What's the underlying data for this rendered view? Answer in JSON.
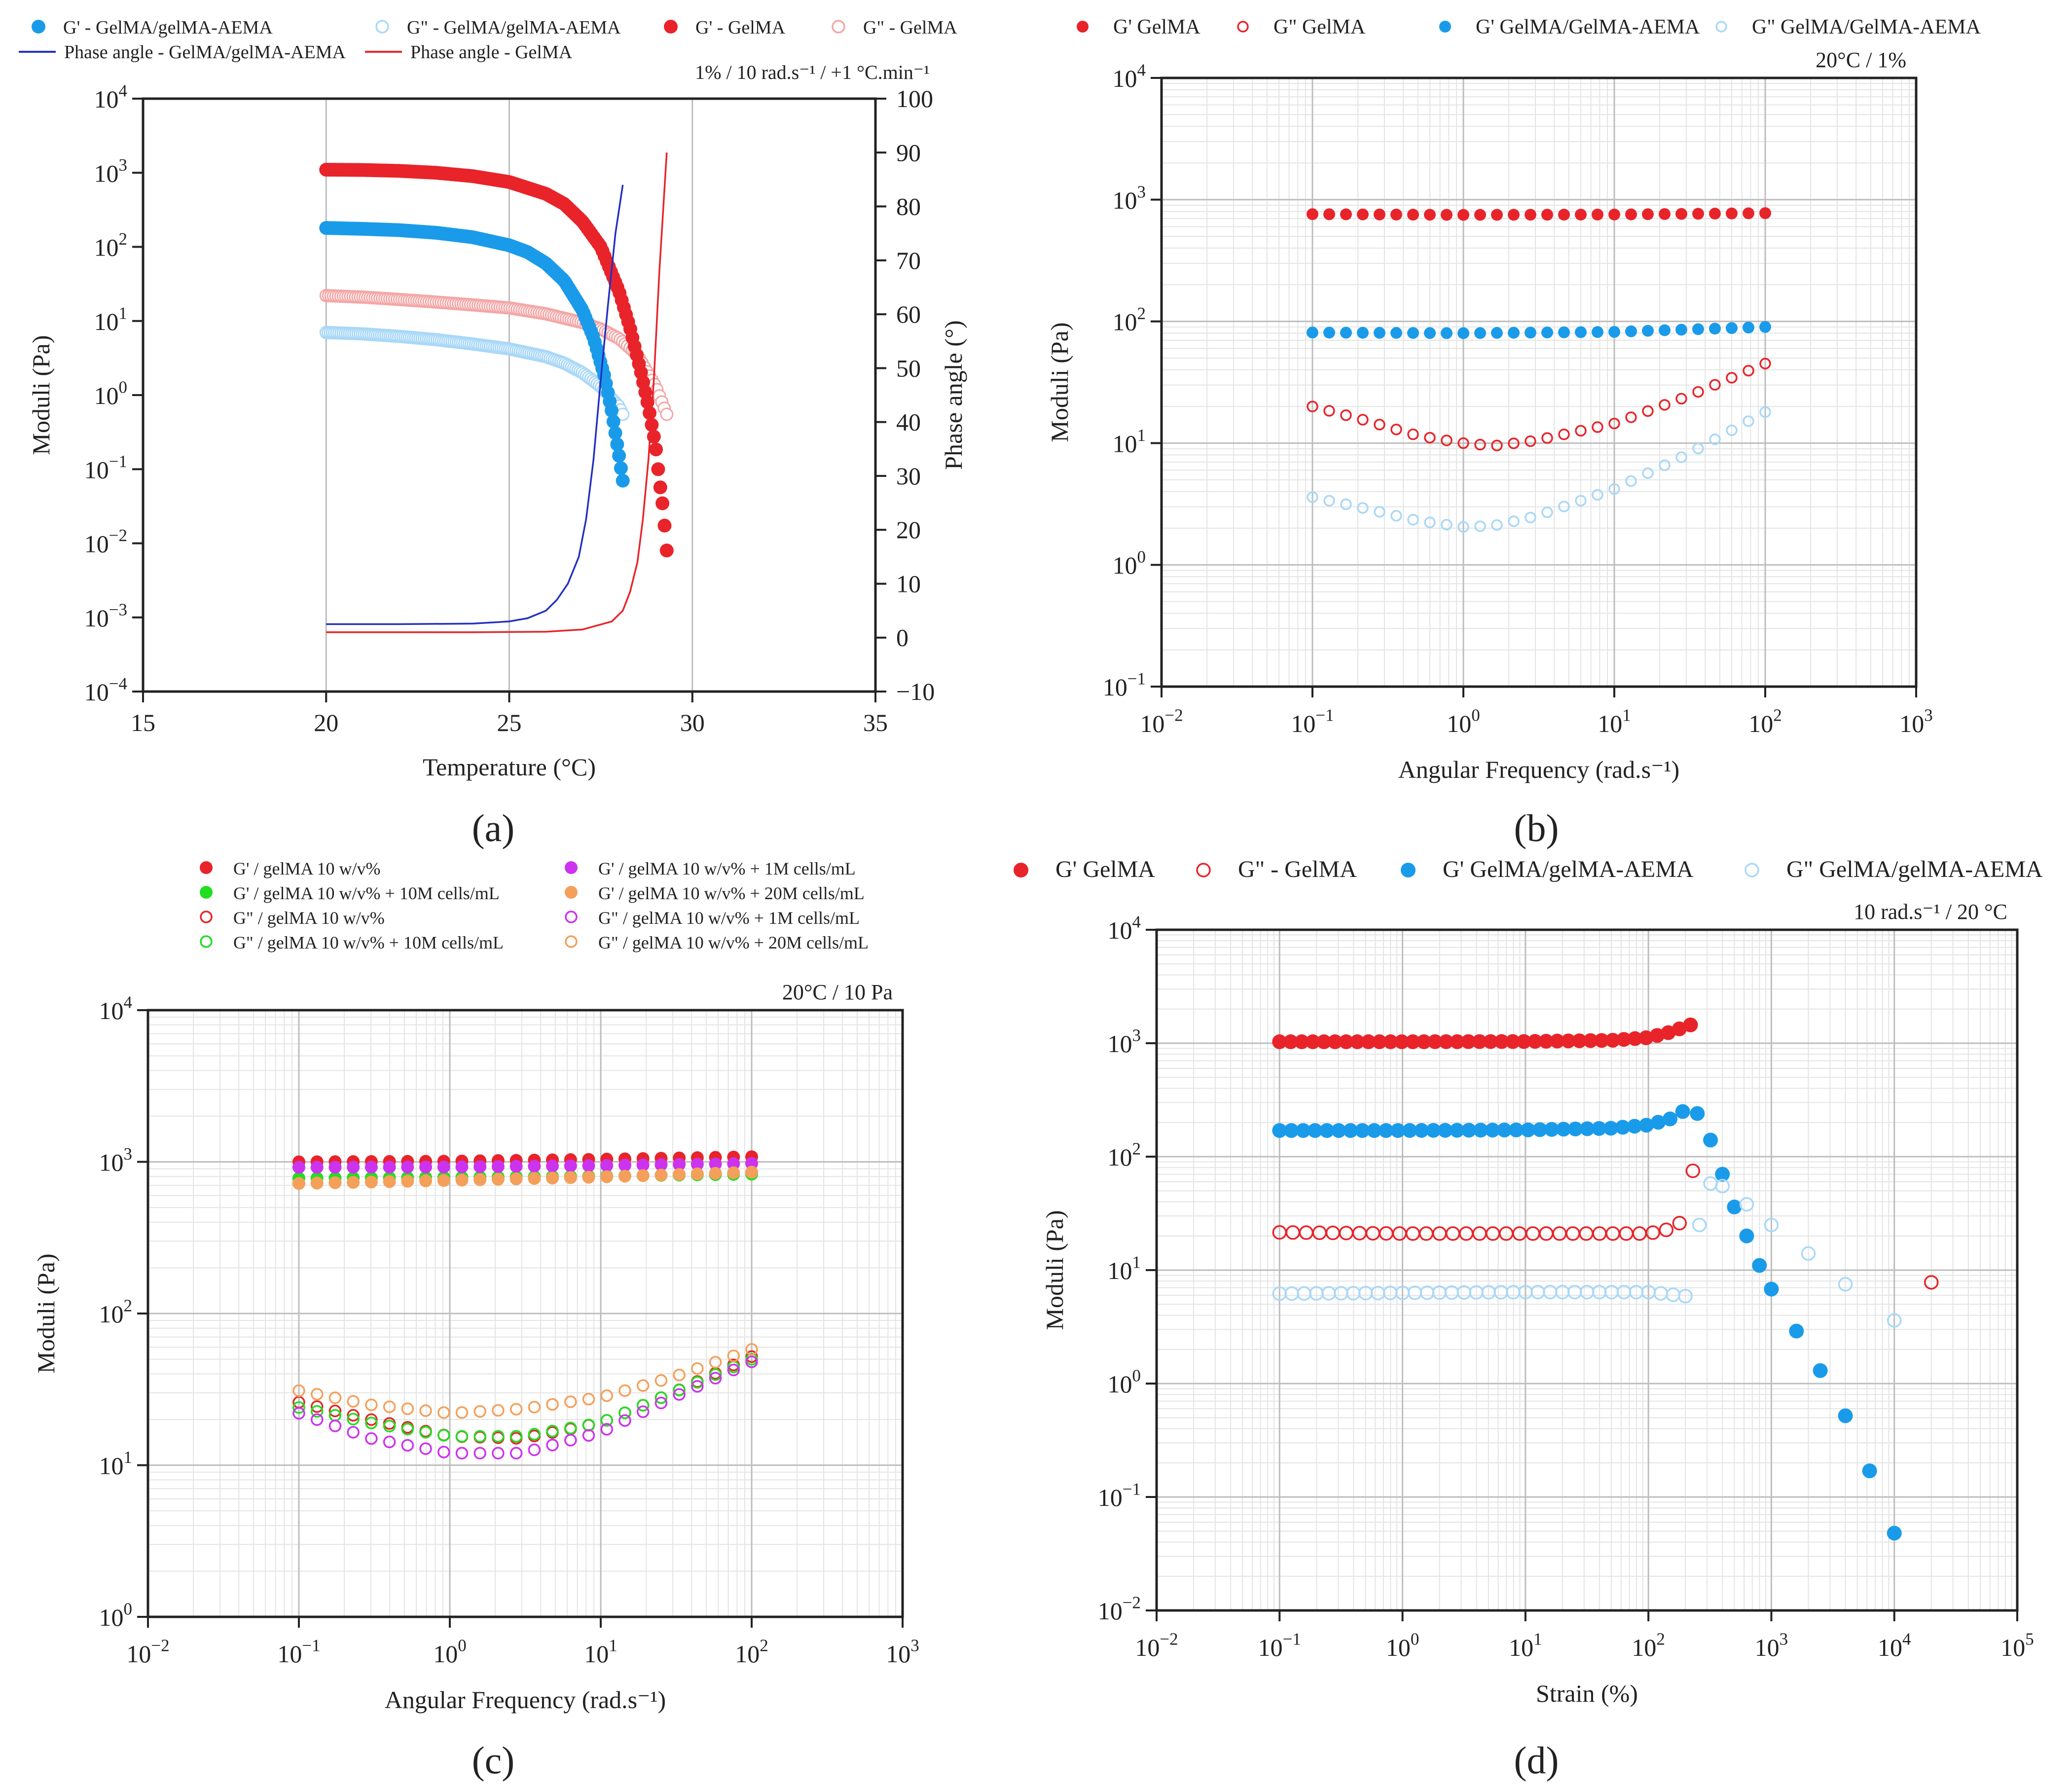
{
  "colors": {
    "red": "#e8242a",
    "blue": "#1a9bea",
    "light_red": "#f4a6a6",
    "light_blue": "#a9d8f7",
    "navy_line": "#2430c0",
    "red_line": "#e8242a",
    "green": "#22dd22",
    "magenta": "#cc33ee",
    "orange": "#f4a05a"
  },
  "panel_labels": {
    "a": "(a)",
    "b": "(b)",
    "c": "(c)",
    "d": "(d)"
  },
  "chart_data": [
    {
      "id": "a",
      "type": "scatter",
      "title": "",
      "annotation": "1% / 10 rad.s⁻¹ / +1 °C.min⁻¹",
      "xlabel": "Temperature (°C)",
      "ylabel": "Moduli (Pa)",
      "y2label": "Phase angle (°)",
      "xlim": [
        15,
        35
      ],
      "ylim_log10": [
        -4,
        4
      ],
      "y2lim": [
        -10,
        100
      ],
      "xticks": [
        "15",
        "20",
        "25",
        "30",
        "35"
      ],
      "yticks_exp": [
        "−4",
        "−3",
        "−2",
        "−1",
        "0",
        "1",
        "2",
        "3",
        "4"
      ],
      "y2ticks": [
        "−10",
        "0",
        "10",
        "20",
        "30",
        "40",
        "50",
        "60",
        "70",
        "80",
        "90",
        "100"
      ],
      "series": [
        {
          "name": "G' - GelMA/gelMA-AEMA",
          "style": "filled",
          "color": "blue",
          "x": [
            20,
            21,
            22,
            23,
            24,
            25,
            25.5,
            26,
            26.5,
            27,
            27.3,
            27.6,
            27.8,
            28,
            28.1
          ],
          "y": [
            180,
            175,
            168,
            155,
            135,
            105,
            85,
            60,
            35,
            14,
            6,
            1.8,
            0.6,
            0.15,
            0.07
          ]
        },
        {
          "name": "G\" - GelMA/gelMA-AEMA",
          "style": "open",
          "color": "light_blue",
          "x": [
            20,
            21,
            22,
            23,
            24,
            25,
            26,
            26.5,
            27,
            27.5,
            28,
            28.1
          ],
          "y": [
            7,
            6.7,
            6.2,
            5.6,
            4.9,
            4.2,
            3.3,
            2.7,
            2,
            1.3,
            0.7,
            0.55
          ]
        },
        {
          "name": "G' - GelMA",
          "style": "filled",
          "color": "red",
          "x": [
            20,
            21,
            22,
            23,
            24,
            25,
            26,
            26.5,
            27,
            27.5,
            28,
            28.3,
            28.6,
            28.8,
            29,
            29.1,
            29.2,
            29.3
          ],
          "y": [
            1100,
            1090,
            1060,
            1000,
            900,
            750,
            520,
            380,
            220,
            100,
            25,
            8,
            2,
            0.7,
            0.2,
            0.07,
            0.03,
            0.008
          ]
        },
        {
          "name": "G\" - GelMA",
          "style": "open",
          "color": "light_red",
          "x": [
            20,
            21,
            22,
            23,
            24,
            25,
            26,
            27,
            27.5,
            28,
            28.5,
            29,
            29.3
          ],
          "y": [
            22,
            21,
            19.5,
            18,
            16.5,
            15,
            12.5,
            9.5,
            7.8,
            5.8,
            3.5,
            1.3,
            0.55
          ]
        },
        {
          "name": "Phase angle - GelMA/gelMA-AEMA",
          "style": "line",
          "color": "navy_line",
          "axis": "y2",
          "x": [
            20,
            22,
            24,
            25,
            25.5,
            26,
            26.3,
            26.6,
            26.9,
            27.1,
            27.3,
            27.5,
            27.7,
            27.9,
            28.1
          ],
          "y": [
            2.5,
            2.5,
            2.6,
            3,
            3.6,
            5,
            7,
            10,
            15,
            22,
            33,
            48,
            62,
            75,
            84
          ]
        },
        {
          "name": "Phase angle - GelMA",
          "style": "line",
          "color": "red_line",
          "axis": "y2",
          "x": [
            20,
            24,
            26,
            27,
            27.8,
            28.1,
            28.3,
            28.5,
            28.65,
            28.8,
            28.95,
            29.1,
            29.3
          ],
          "y": [
            1,
            1,
            1.1,
            1.5,
            3,
            5,
            8.5,
            14,
            22,
            33,
            48,
            68,
            90
          ]
        }
      ]
    },
    {
      "id": "b",
      "type": "scatter",
      "title": "",
      "annotation": "20°C / 1%",
      "xlabel": "Angular Frequency (rad.s⁻¹)",
      "ylabel": "Moduli (Pa)",
      "xlim_log10": [
        -2,
        3
      ],
      "ylim_log10": [
        -1,
        4
      ],
      "xticks_exp": [
        "−2",
        "−1",
        "0",
        "1",
        "2",
        "3"
      ],
      "yticks_exp": [
        "−1",
        "0",
        "1",
        "2",
        "3",
        "4"
      ],
      "series": [
        {
          "name": "G' GelMA",
          "style": "filled",
          "color": "red",
          "x": [
            0.1,
            1,
            10,
            100
          ],
          "y": [
            760,
            750,
            755,
            775
          ]
        },
        {
          "name": "G\" GelMA",
          "style": "open",
          "color": "red",
          "x": [
            0.1,
            0.2,
            0.5,
            1,
            1.6,
            3,
            10,
            30,
            100
          ],
          "y": [
            20,
            16,
            11.5,
            10,
            9.5,
            10.5,
            14.5,
            24,
            45
          ]
        },
        {
          "name": "G' GelMA/GelMA-AEMA",
          "style": "filled",
          "color": "blue",
          "x": [
            0.1,
            1,
            10,
            100
          ],
          "y": [
            81,
            80,
            82,
            90
          ]
        },
        {
          "name": "G\" GelMA/GelMA-AEMA",
          "style": "open",
          "color": "light_blue",
          "x": [
            0.1,
            0.2,
            0.5,
            1,
            1.6,
            3,
            10,
            30,
            100
          ],
          "y": [
            3.6,
            3,
            2.3,
            2.05,
            2.1,
            2.5,
            4.2,
            8,
            18
          ]
        }
      ]
    },
    {
      "id": "c",
      "type": "scatter",
      "title": "",
      "annotation": "20°C / 10 Pa",
      "xlabel": "Angular Frequency (rad.s⁻¹)",
      "ylabel": "Moduli (Pa)",
      "xlim_log10": [
        -2,
        3
      ],
      "ylim_log10": [
        0,
        4
      ],
      "xticks_exp": [
        "−2",
        "−1",
        "0",
        "1",
        "2",
        "3"
      ],
      "yticks_exp": [
        "0",
        "1",
        "2",
        "3",
        "4"
      ],
      "series": [
        {
          "name": "G' / gelMA 10 w/v%",
          "style": "filled",
          "color": "red",
          "x": [
            0.1,
            1,
            10,
            100
          ],
          "y": [
            1000,
            1010,
            1040,
            1080
          ]
        },
        {
          "name": "G' / gelMA 10 w/v% + 10M cells/mL",
          "style": "filled",
          "color": "green",
          "x": [
            0.1,
            1,
            10,
            100
          ],
          "y": [
            780,
            790,
            805,
            830
          ]
        },
        {
          "name": "G\" / gelMA 10 w/v%",
          "style": "open",
          "color": "red",
          "x": [
            0.1,
            0.3,
            1,
            3,
            10,
            30,
            100
          ],
          "y": [
            26,
            20,
            15.5,
            15,
            19,
            30,
            52
          ]
        },
        {
          "name": "G\" / gelMA 10 w/v% + 10M cells/mL",
          "style": "open",
          "color": "green",
          "x": [
            0.1,
            0.3,
            1,
            3,
            10,
            30,
            100
          ],
          "y": [
            24,
            19,
            15.5,
            15.5,
            19,
            30,
            50
          ]
        },
        {
          "name": "G' / gelMA 10 w/v% + 1M cells/mL",
          "style": "filled",
          "color": "magenta",
          "x": [
            0.1,
            1,
            10,
            100
          ],
          "y": [
            920,
            925,
            945,
            975
          ]
        },
        {
          "name": "G' / gelMA 10 w/v% + 20M cells/mL",
          "style": "filled",
          "color": "orange",
          "x": [
            0.1,
            1,
            10,
            100
          ],
          "y": [
            720,
            755,
            795,
            855
          ]
        },
        {
          "name": "G\" / gelMA 10 w/v% + 1M cells/mL",
          "style": "open",
          "color": "magenta",
          "x": [
            0.1,
            0.3,
            1,
            3,
            10,
            30,
            100
          ],
          "y": [
            22,
            15,
            12,
            12,
            16.5,
            28,
            48
          ]
        },
        {
          "name": "G\" / gelMA 10 w/v% + 20M cells/mL",
          "style": "open",
          "color": "orange",
          "x": [
            0.1,
            0.3,
            1,
            3,
            10,
            30,
            100
          ],
          "y": [
            31,
            25,
            22,
            23.5,
            28,
            38,
            58
          ]
        }
      ]
    },
    {
      "id": "d",
      "type": "scatter",
      "title": "",
      "annotation": "10 rad.s⁻¹ / 20 °C",
      "xlabel": "Strain (%)",
      "ylabel": "Moduli (Pa)",
      "xlim_log10": [
        -2,
        5
      ],
      "ylim_log10": [
        -2,
        4
      ],
      "xticks_exp": [
        "−2",
        "−1",
        "0",
        "1",
        "2",
        "3",
        "4",
        "5"
      ],
      "yticks_exp": [
        "−2",
        "−1",
        "0",
        "1",
        "2",
        "3",
        "4"
      ],
      "series": [
        {
          "name": "G' GelMA",
          "style": "filled",
          "color": "red",
          "x": [
            0.1,
            1,
            10,
            50,
            100,
            150,
            220
          ],
          "y": [
            1030,
            1030,
            1035,
            1060,
            1120,
            1250,
            1450
          ]
        },
        {
          "name": "G\" - GelMA",
          "style": "open",
          "color": "red",
          "x": [
            0.1,
            1,
            10,
            100,
            150,
            190,
            230,
            20000
          ],
          "y": [
            21.5,
            21,
            21,
            21,
            23,
            27,
            75,
            7.8
          ]
        },
        {
          "name": "G' GelMA/gelMA-AEMA",
          "style": "filled",
          "color": "blue",
          "x": [
            0.1,
            1,
            10,
            50,
            100,
            150,
            190,
            250,
            320,
            400,
            500,
            630,
            800,
            1000,
            1600,
            2500,
            4000,
            6300,
            10000
          ],
          "y": [
            170,
            170,
            172,
            178,
            190,
            215,
            250,
            240,
            140,
            70,
            36,
            20,
            11,
            6.8,
            2.9,
            1.3,
            0.52,
            0.17,
            0.048
          ]
        },
        {
          "name": "G\" GelMA/gelMA-AEMA",
          "style": "open",
          "color": "light_blue",
          "x": [
            0.1,
            1,
            10,
            100,
            200,
            260,
            320,
            400,
            630,
            1000,
            2000,
            4000,
            10000
          ],
          "y": [
            6.2,
            6.3,
            6.4,
            6.4,
            5.9,
            25,
            58,
            55,
            38,
            25,
            14,
            7.5,
            3.6
          ]
        }
      ]
    }
  ]
}
